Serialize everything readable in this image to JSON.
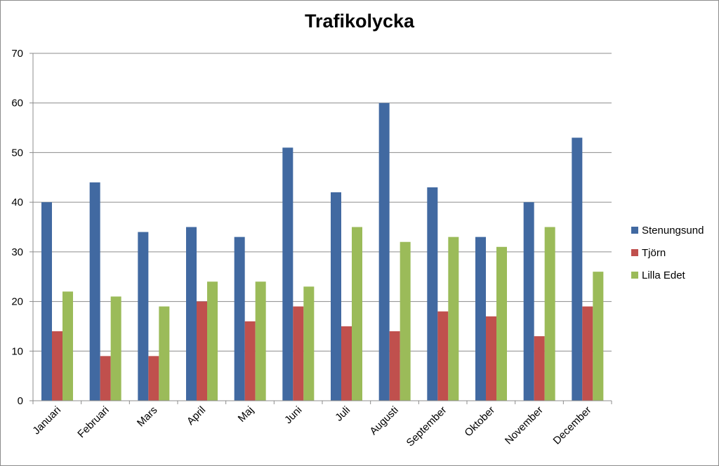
{
  "chart_data": {
    "type": "bar",
    "title": "Trafikolycka",
    "xlabel": "",
    "ylabel": "",
    "ylim": [
      0,
      70
    ],
    "yticks": [
      0,
      10,
      20,
      30,
      40,
      50,
      60,
      70
    ],
    "grid": true,
    "legend_position": "right",
    "categories": [
      "Januari",
      "Februari",
      "Mars",
      "April",
      "Maj",
      "Juni",
      "Juli",
      "Augusti",
      "September",
      "Oktober",
      "November",
      "December"
    ],
    "series": [
      {
        "name": "Stenungsund",
        "color": "#4169a1",
        "values": [
          40,
          44,
          34,
          35,
          33,
          51,
          42,
          60,
          43,
          33,
          40,
          53
        ]
      },
      {
        "name": "Tjörn",
        "color": "#c0504d",
        "values": [
          14,
          9,
          9,
          20,
          16,
          19,
          15,
          14,
          18,
          17,
          13,
          19
        ]
      },
      {
        "name": "Lilla Edet",
        "color": "#9bbb59",
        "values": [
          22,
          21,
          19,
          24,
          24,
          23,
          35,
          32,
          33,
          31,
          35,
          26
        ]
      }
    ]
  }
}
